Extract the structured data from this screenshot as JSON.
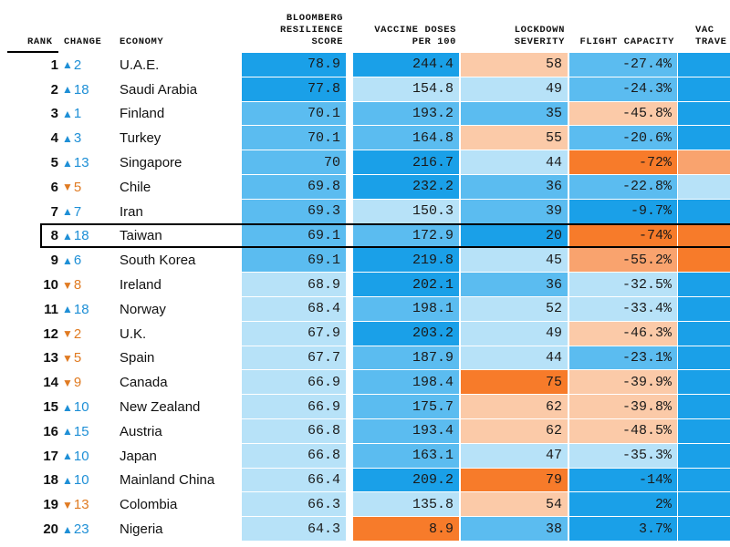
{
  "chart_data": {
    "type": "table",
    "columns": [
      {
        "key": "rank",
        "label": "RANK"
      },
      {
        "key": "change",
        "label": "CHANGE"
      },
      {
        "key": "economy",
        "label": "ECONOMY"
      },
      {
        "key": "resilience",
        "label": "BLOOMBERG\nRESILIENCE\nSCORE"
      },
      {
        "key": "vaccine",
        "label": "VACCINE DOSES\nPER 100"
      },
      {
        "key": "lockdown",
        "label": "LOCKDOWN\nSEVERITY"
      },
      {
        "key": "flight",
        "label": "FLIGHT CAPACITY"
      },
      {
        "key": "travel",
        "label": "VAC\nTRAVE"
      }
    ],
    "highlighted_economy": "Taiwan",
    "rows": [
      {
        "rank": "1",
        "dir": "up",
        "change": "2",
        "economy": "U.A.E.",
        "resilience": "78.9",
        "vaccine": "244.4",
        "lockdown": "58",
        "flight": "-27.4%"
      },
      {
        "rank": "2",
        "dir": "up",
        "change": "18",
        "economy": "Saudi Arabia",
        "resilience": "77.8",
        "vaccine": "154.8",
        "lockdown": "49",
        "flight": "-24.3%"
      },
      {
        "rank": "3",
        "dir": "up",
        "change": "1",
        "economy": "Finland",
        "resilience": "70.1",
        "vaccine": "193.2",
        "lockdown": "35",
        "flight": "-45.8%"
      },
      {
        "rank": "4",
        "dir": "up",
        "change": "3",
        "economy": "Turkey",
        "resilience": "70.1",
        "vaccine": "164.8",
        "lockdown": "55",
        "flight": "-20.6%"
      },
      {
        "rank": "5",
        "dir": "up",
        "change": "13",
        "economy": "Singapore",
        "resilience": "70",
        "vaccine": "216.7",
        "lockdown": "44",
        "flight": "-72%"
      },
      {
        "rank": "6",
        "dir": "down",
        "change": "5",
        "economy": "Chile",
        "resilience": "69.8",
        "vaccine": "232.2",
        "lockdown": "36",
        "flight": "-22.8%"
      },
      {
        "rank": "7",
        "dir": "up",
        "change": "7",
        "economy": "Iran",
        "resilience": "69.3",
        "vaccine": "150.3",
        "lockdown": "39",
        "flight": "-9.7%"
      },
      {
        "rank": "8",
        "dir": "up",
        "change": "18",
        "economy": "Taiwan",
        "resilience": "69.1",
        "vaccine": "172.9",
        "lockdown": "20",
        "flight": "-74%"
      },
      {
        "rank": "9",
        "dir": "up",
        "change": "6",
        "economy": "South Korea",
        "resilience": "69.1",
        "vaccine": "219.8",
        "lockdown": "45",
        "flight": "-55.2%"
      },
      {
        "rank": "10",
        "dir": "down",
        "change": "8",
        "economy": "Ireland",
        "resilience": "68.9",
        "vaccine": "202.1",
        "lockdown": "36",
        "flight": "-32.5%"
      },
      {
        "rank": "11",
        "dir": "up",
        "change": "18",
        "economy": "Norway",
        "resilience": "68.4",
        "vaccine": "198.1",
        "lockdown": "52",
        "flight": "-33.4%"
      },
      {
        "rank": "12",
        "dir": "down",
        "change": "2",
        "economy": "U.K.",
        "resilience": "67.9",
        "vaccine": "203.2",
        "lockdown": "49",
        "flight": "-46.3%"
      },
      {
        "rank": "13",
        "dir": "down",
        "change": "5",
        "economy": "Spain",
        "resilience": "67.7",
        "vaccine": "187.9",
        "lockdown": "44",
        "flight": "-23.1%"
      },
      {
        "rank": "14",
        "dir": "down",
        "change": "9",
        "economy": "Canada",
        "resilience": "66.9",
        "vaccine": "198.4",
        "lockdown": "75",
        "flight": "-39.9%"
      },
      {
        "rank": "15",
        "dir": "up",
        "change": "10",
        "economy": "New Zealand",
        "resilience": "66.9",
        "vaccine": "175.7",
        "lockdown": "62",
        "flight": "-39.8%"
      },
      {
        "rank": "16",
        "dir": "up",
        "change": "15",
        "economy": "Austria",
        "resilience": "66.8",
        "vaccine": "193.4",
        "lockdown": "62",
        "flight": "-48.5%"
      },
      {
        "rank": "17",
        "dir": "up",
        "change": "10",
        "economy": "Japan",
        "resilience": "66.8",
        "vaccine": "163.1",
        "lockdown": "47",
        "flight": "-35.3%"
      },
      {
        "rank": "18",
        "dir": "up",
        "change": "10",
        "economy": "Mainland China",
        "resilience": "66.4",
        "vaccine": "209.2",
        "lockdown": "79",
        "flight": "-14%"
      },
      {
        "rank": "19",
        "dir": "down",
        "change": "13",
        "economy": "Colombia",
        "resilience": "66.3",
        "vaccine": "135.8",
        "lockdown": "54",
        "flight": "2%"
      },
      {
        "rank": "20",
        "dir": "up",
        "change": "23",
        "economy": "Nigeria",
        "resilience": "64.3",
        "vaccine": "8.9",
        "lockdown": "38",
        "flight": "3.7%"
      }
    ],
    "colors": {
      "dark_blue": "#1aa0e8",
      "mid_blue": "#5bbcf0",
      "light_blue": "#b7e2f8",
      "light_orange": "#fbcaa8",
      "mid_orange": "#f9a36e",
      "dark_orange": "#f77b2a",
      "change_up": "#1e8fd6",
      "change_down": "#e07b22"
    }
  }
}
